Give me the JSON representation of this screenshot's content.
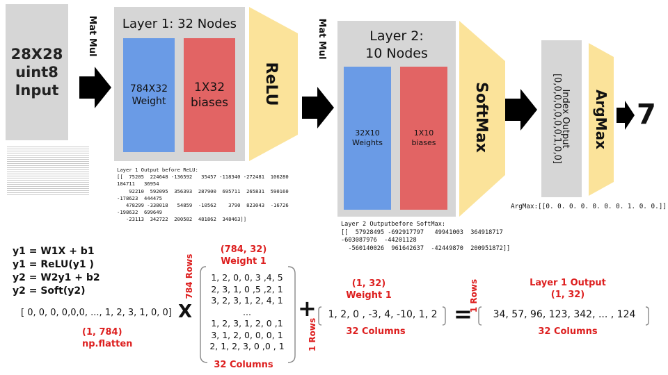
{
  "input_box": {
    "line1": "28X28",
    "line2": "uint8",
    "line3": "Input"
  },
  "matmul1": "Mat Mul",
  "layer1": {
    "title": "Layer 1: 32 Nodes",
    "weight_line1": "784X32",
    "weight_line2": "Weight",
    "bias_line1": "1X32",
    "bias_line2": "biases"
  },
  "relu": "ReLU",
  "layer1_output_text": "Layer 1 Output before ReLU:\n[[  75205  224648 -136592   35457 -118340 -272481  106280\n184711   36954\n    92210  592095  356393  287900  695711  265831  590160\n-178623  444475\n   478299 -338018   54859  -10562    3790  823043  -16726\n-198632  699649\n   -23113  342722  200582  481862  348463]]",
  "matmul2": "Mat Mul",
  "layer2": {
    "title_line1": "Layer 2:",
    "title_line2": "10 Nodes",
    "weight_line1": "32X10",
    "weight_line2": "Weights",
    "bias_line1": "1X10",
    "bias_line2": "biases"
  },
  "softmax": "SoftMax",
  "layer2_output_text": "Layer 2 Outputbefore SoftMax:\n[[  57928495 -692917797   49941003  364918717\n-603087976  -44201128\n  -560140026  961642637  -42449870  200951872]]",
  "index_output": {
    "line1": "Index Output",
    "line2": "[0,0,0,0,0,0,0,1,0,0]"
  },
  "argmax": "ArgMax",
  "argmax_text": "ArgMax:[[0. 0. 0. 0. 0. 0. 0. 1. 0. 0.]]",
  "result": "7",
  "equations": [
    "y1 = W1X + b1",
    "y1 = ReLU(y1 )",
    "y2 = W2y1 + b2",
    "y2 = Soft(y2)"
  ],
  "input_vector": "[ 0, 0, 0, 0,0,0,  ...,  1, 2, 3, 1, 0, 0]",
  "input_shape": "(1, 784)",
  "input_op": "np.flatten",
  "times": "X",
  "weight1_matrix": {
    "shape": "(784, 32)",
    "label": "Weight 1",
    "rows_label": "784 Rows",
    "rows": [
      "1, 2, 0, 0, 3 ,4, 5",
      "2, 3, 1, 0 ,5 ,2, 1",
      "3, 2, 3, 1, 2, 4, 1",
      "...",
      "1, 2, 3, 1, 2, 0 ,1",
      "3, 1, 2, 0, 0, 0, 1",
      "2, 1, 2, 3, 0 ,0 , 1"
    ],
    "cols_label": "32 Columns"
  },
  "plus": "+",
  "bias_matrix": {
    "shape": "(1, 32)",
    "label": "Weight 1",
    "rows_label": "1 Rows",
    "row": "1, 2, 0 , -3, 4, -10, 1, 2",
    "cols_label": "32 Columns"
  },
  "equals": "=",
  "result_matrix": {
    "rows_label": "1 Rows",
    "title": "Layer 1 Output",
    "shape": "(1, 32)",
    "row": "34, 57, 96, 123, 342, ... , 124",
    "cols_label": "32 Columns"
  },
  "colors": {
    "gray": "#d6d6d6",
    "blue": "#6a9be6",
    "red": "#e26464",
    "yellow": "#fbe39a",
    "label_red": "#dd1f1f"
  }
}
